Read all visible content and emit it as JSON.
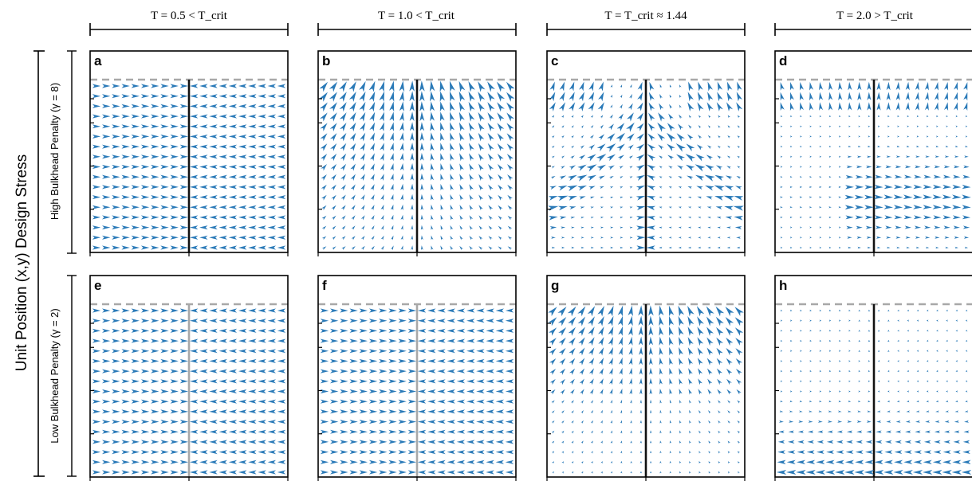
{
  "figure": {
    "y_axis_label": "Unit Position (x,y) Design Stress",
    "row_labels": [
      "High Bulkhead Penalty (γ = 8)",
      "Low Bulkhead Penalty (γ = 2)"
    ],
    "column_titles": [
      "T = 0.5 < T_crit",
      "T = 1.0 < T_crit",
      "T = T_crit ≈ 1.44",
      "T = 2.0 > T_crit"
    ],
    "panels": [
      {
        "letter": "a",
        "row": 0,
        "col": 0,
        "pattern": "uniform-inward"
      },
      {
        "letter": "b",
        "row": 0,
        "col": 1,
        "pattern": "top-fountain"
      },
      {
        "letter": "c",
        "row": 0,
        "col": 2,
        "pattern": "ordered-chevron"
      },
      {
        "letter": "d",
        "row": 0,
        "col": 3,
        "pattern": "sparse-right"
      },
      {
        "letter": "e",
        "row": 1,
        "col": 0,
        "pattern": "uniform-inward"
      },
      {
        "letter": "f",
        "row": 1,
        "col": 1,
        "pattern": "uniform-inward"
      },
      {
        "letter": "g",
        "row": 1,
        "col": 2,
        "pattern": "top-fountain-strong"
      },
      {
        "letter": "h",
        "row": 1,
        "col": 3,
        "pattern": "sparse-bottom-left"
      }
    ],
    "colors": {
      "arrow": "#2a7ab8",
      "bulkhead_dark": "#111111",
      "bulkhead_light": "#a8a8a8",
      "dashed_boundary": "#a8a8a8",
      "frame": "#000000"
    }
  }
}
